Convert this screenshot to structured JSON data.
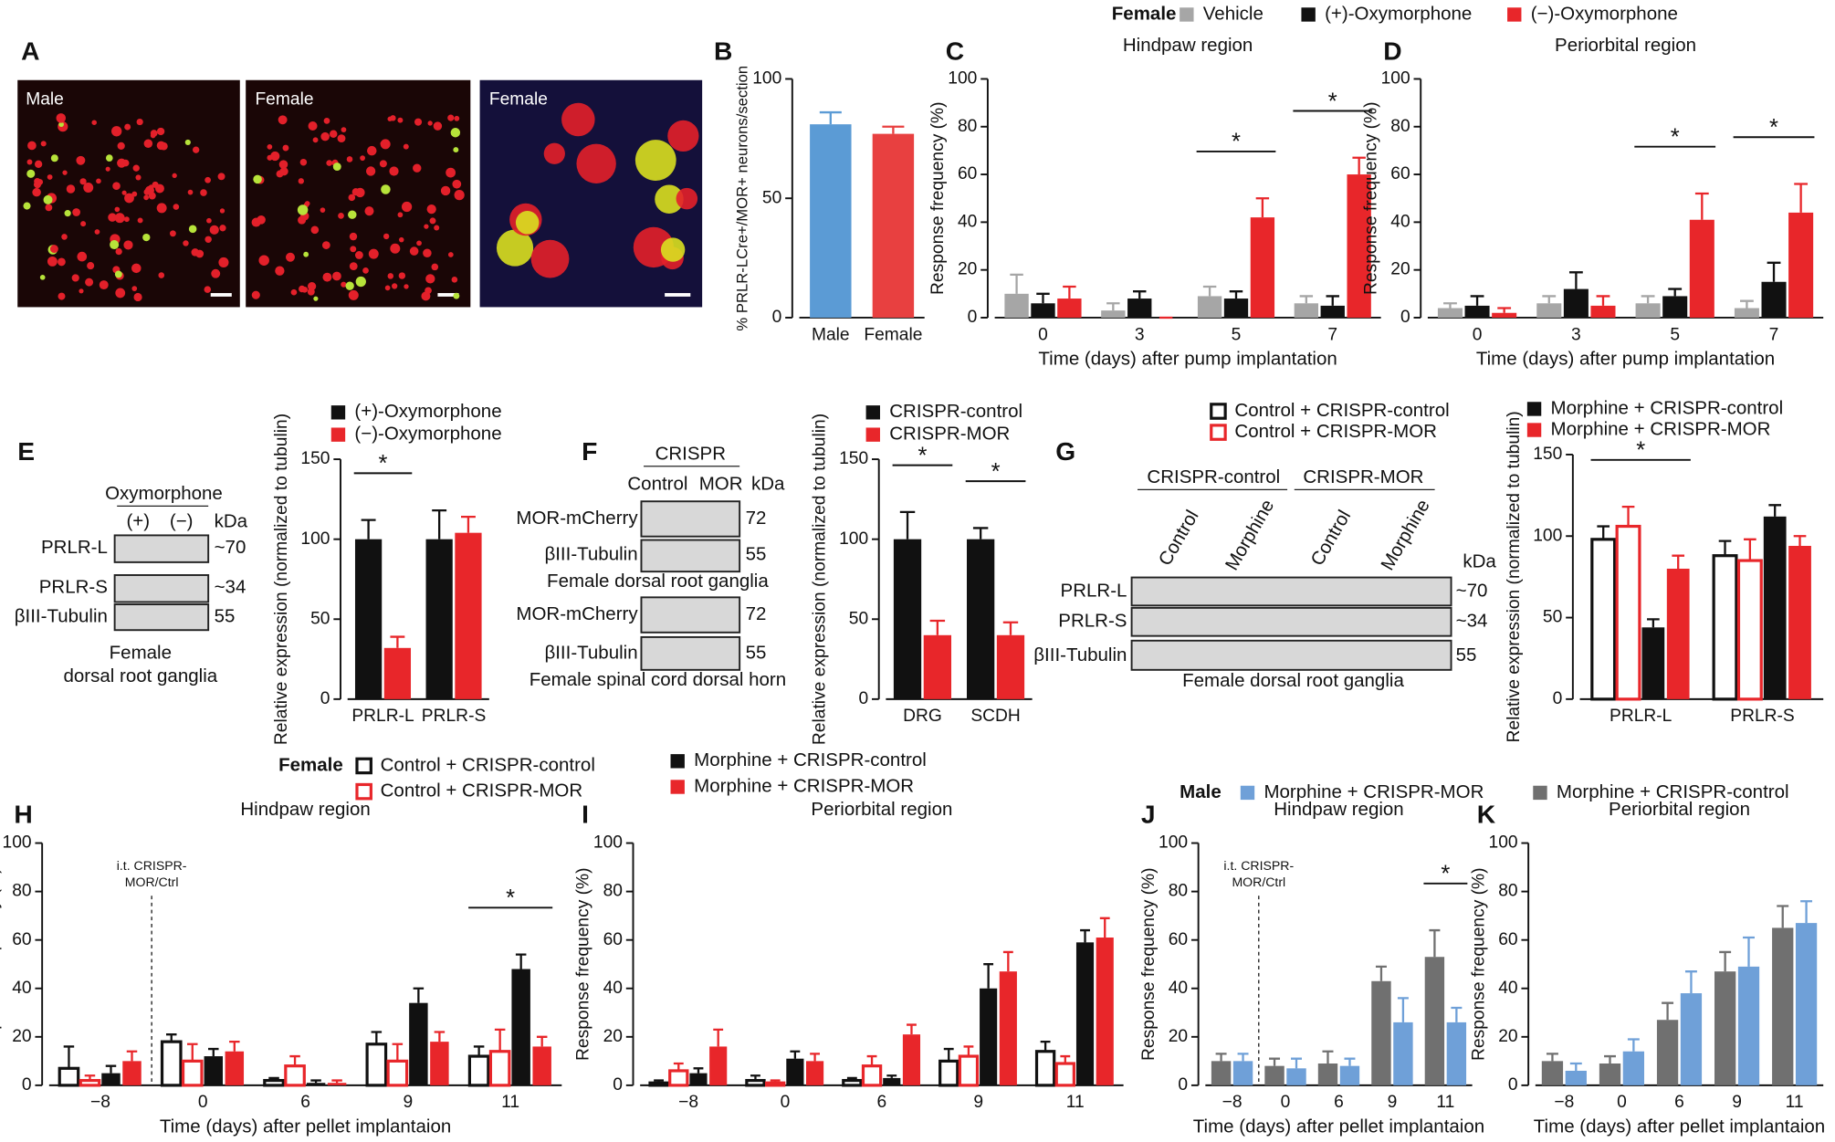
{
  "figure": {
    "panel_letters": [
      "A",
      "B",
      "C",
      "D",
      "E",
      "F",
      "G",
      "H",
      "I",
      "J",
      "K"
    ],
    "images": [
      "Male",
      "Female",
      "Female"
    ],
    "blot_e": {
      "header": "Oxymorphone",
      "lanes": [
        "(+)",
        "(−)"
      ],
      "unit": "kDa",
      "rows": [
        "PRLR-L",
        "PRLR-S",
        "βIII-Tubulin"
      ],
      "sizes": [
        "~70",
        "~34",
        "55"
      ],
      "caption": [
        "Female",
        "dorsal root ganglia"
      ]
    },
    "blot_f": {
      "header": "CRISPR",
      "lanes": [
        "Control",
        "MOR"
      ],
      "unit": "kDa",
      "rows": [
        "MOR-mCherry",
        "βIII-Tubulin",
        "MOR-mCherry",
        "βIII-Tubulin"
      ],
      "sizes": [
        "72",
        "55",
        "72",
        "55"
      ],
      "caption": [
        "Female dorsal root ganglia",
        "Female spinal cord dorsal horn"
      ]
    },
    "blot_g": {
      "groups": [
        "CRISPR-control",
        "CRISPR-MOR"
      ],
      "lanes": [
        "Control",
        "Morphine",
        "Control",
        "Morphine"
      ],
      "unit": "kDa",
      "rows": [
        "PRLR-L",
        "PRLR-S",
        "βIII-Tubulin"
      ],
      "sizes": [
        "~70",
        "~34",
        "55"
      ],
      "caption": "Female dorsal root ganglia"
    }
  },
  "chart_data": [
    {
      "type": "bar",
      "ylabel": "% PRLR-LCre+/MOR+ neurons/section",
      "categories": [
        "Male",
        "Female"
      ],
      "series": [
        {
          "color": "#5b9bd5",
          "values": [
            81,
            null
          ],
          "errors": [
            5,
            null
          ]
        },
        {
          "color": "#e84040",
          "values": [
            null,
            77
          ],
          "errors": [
            null,
            3
          ]
        }
      ],
      "ylim": [
        0,
        100
      ],
      "yticks": [
        0,
        50,
        100
      ]
    },
    {
      "type": "bar",
      "title": "Hindpaw region",
      "ylabel": "Response frequency (%)",
      "xlabel": "Time (days) after pump implantation",
      "legend_title": "Female",
      "categories": [
        "0",
        "3",
        "5",
        "7"
      ],
      "series": [
        {
          "name": "Vehicle",
          "color": "#a6a6a6",
          "values": [
            10,
            3,
            9,
            6
          ],
          "errors": [
            8,
            3,
            4,
            3
          ]
        },
        {
          "name": "(+)-Oxymorphone",
          "color": "#111111",
          "values": [
            6,
            8,
            8,
            5
          ],
          "errors": [
            4,
            3,
            3,
            4
          ]
        },
        {
          "name": "(−)-Oxymorphone",
          "color": "#e8262a",
          "values": [
            8,
            0,
            42,
            60
          ],
          "errors": [
            5,
            0,
            8,
            7
          ]
        }
      ],
      "ylim": [
        0,
        100
      ],
      "yticks": [
        0,
        20,
        40,
        60,
        80,
        100
      ],
      "annotations": [
        {
          "category": 2,
          "text": "*"
        },
        {
          "category": 3,
          "text": "*"
        }
      ]
    },
    {
      "type": "bar",
      "title": "Periorbital region",
      "ylabel": "Response frequency (%)",
      "xlabel": "Time (days) after pump implantation",
      "categories": [
        "0",
        "3",
        "5",
        "7"
      ],
      "series": [
        {
          "color": "#a6a6a6",
          "values": [
            4,
            6,
            6,
            4
          ],
          "errors": [
            2,
            3,
            3,
            3
          ]
        },
        {
          "color": "#111111",
          "values": [
            5,
            12,
            9,
            15
          ],
          "errors": [
            4,
            7,
            3,
            8
          ]
        },
        {
          "color": "#e8262a",
          "values": [
            2,
            5,
            41,
            44
          ],
          "errors": [
            2,
            4,
            11,
            12
          ]
        }
      ],
      "ylim": [
        0,
        100
      ],
      "yticks": [
        0,
        20,
        40,
        60,
        80,
        100
      ],
      "annotations": [
        {
          "category": 2,
          "text": "*"
        },
        {
          "category": 3,
          "text": "*"
        }
      ]
    },
    {
      "type": "bar",
      "ylabel": "Relative expression (normalized to tubulin)",
      "categories": [
        "PRLR-L",
        "PRLR-S"
      ],
      "series": [
        {
          "name": "(+)-Oxymorphone",
          "color": "#111111",
          "values": [
            100,
            100
          ],
          "errors": [
            12,
            18
          ]
        },
        {
          "name": "(−)-Oxymorphone",
          "color": "#e8262a",
          "values": [
            32,
            104
          ],
          "errors": [
            7,
            10
          ]
        }
      ],
      "ylim": [
        0,
        150
      ],
      "yticks": [
        0,
        50,
        100,
        150
      ],
      "annotations": [
        {
          "category": 0,
          "text": "*"
        }
      ]
    },
    {
      "type": "bar",
      "ylabel": "Relative expression (normalized to tubulin)",
      "categories": [
        "DRG",
        "SCDH"
      ],
      "series": [
        {
          "name": "CRISPR-control",
          "color": "#111111",
          "values": [
            100,
            100
          ],
          "errors": [
            17,
            7
          ]
        },
        {
          "name": "CRISPR-MOR",
          "color": "#e8262a",
          "values": [
            40,
            40
          ],
          "errors": [
            9,
            8
          ]
        }
      ],
      "ylim": [
        0,
        150
      ],
      "yticks": [
        0,
        50,
        100,
        150
      ],
      "annotations": [
        {
          "category": 0,
          "text": "*"
        },
        {
          "category": 1,
          "text": "*"
        }
      ]
    },
    {
      "type": "bar",
      "ylabel": "Relative expression (normalized to tubulin)",
      "categories": [
        "PRLR-L",
        "PRLR-S"
      ],
      "series": [
        {
          "name": "Control + CRISPR-control",
          "color": "#111111",
          "open": true,
          "values": [
            98,
            88
          ],
          "errors": [
            8,
            9
          ]
        },
        {
          "name": "Control + CRISPR-MOR",
          "color": "#e8262a",
          "open": true,
          "values": [
            106,
            85
          ],
          "errors": [
            12,
            13
          ]
        },
        {
          "name": "Morphine + CRISPR-control",
          "color": "#111111",
          "values": [
            44,
            112
          ],
          "errors": [
            5,
            7
          ]
        },
        {
          "name": "Morphine + CRISPR-MOR",
          "color": "#e8262a",
          "values": [
            80,
            94
          ],
          "errors": [
            8,
            6
          ]
        }
      ],
      "ylim": [
        0,
        150
      ],
      "yticks": [
        0,
        50,
        100,
        150
      ],
      "annotations": [
        {
          "category": 0,
          "text": "*"
        }
      ]
    },
    {
      "type": "bar",
      "title": "Hindpaw region",
      "ylabel": "Response frequency (%)",
      "xlabel": "Time (days) after pellet implantaion",
      "legend_title": "Female",
      "categories": [
        "−8",
        "0",
        "6",
        "9",
        "11"
      ],
      "vline_label": [
        "i.t. CRISPR-",
        "MOR/Ctrl"
      ],
      "series": [
        {
          "name": "Control + CRISPR-control",
          "color": "#111111",
          "open": true,
          "values": [
            7,
            18,
            2,
            17,
            12
          ],
          "errors": [
            9,
            3,
            1,
            5,
            4
          ]
        },
        {
          "name": "Control + CRISPR-MOR",
          "color": "#e8262a",
          "open": true,
          "values": [
            2,
            10,
            8,
            10,
            14
          ],
          "errors": [
            2,
            7,
            4,
            7,
            9
          ]
        },
        {
          "name": "Morphine + CRISPR-control",
          "color": "#111111",
          "values": [
            5,
            12,
            1,
            34,
            48
          ],
          "errors": [
            3,
            3,
            1,
            6,
            6
          ]
        },
        {
          "name": "Morphine + CRISPR-MOR",
          "color": "#e8262a",
          "values": [
            10,
            14,
            1,
            18,
            16
          ],
          "errors": [
            4,
            4,
            1,
            4,
            4
          ]
        }
      ],
      "ylim": [
        0,
        100
      ],
      "yticks": [
        0,
        20,
        40,
        60,
        80,
        100
      ],
      "annotations": [
        {
          "category": 4,
          "text": "*"
        }
      ]
    },
    {
      "type": "bar",
      "title": "Periorbital region",
      "ylabel": "Response frequency (%)",
      "categories": [
        "−8",
        "0",
        "6",
        "9",
        "11"
      ],
      "series": [
        {
          "color": "#111111",
          "open": true,
          "values": [
            1,
            2,
            2,
            10,
            14
          ],
          "errors": [
            1,
            2,
            1,
            5,
            4
          ]
        },
        {
          "color": "#e8262a",
          "open": true,
          "values": [
            6,
            1,
            8,
            12,
            9
          ],
          "errors": [
            3,
            1,
            4,
            4,
            3
          ]
        },
        {
          "color": "#111111",
          "values": [
            5,
            11,
            3,
            40,
            59
          ],
          "errors": [
            2,
            3,
            1,
            10,
            5
          ]
        },
        {
          "color": "#e8262a",
          "values": [
            16,
            10,
            21,
            47,
            61
          ],
          "errors": [
            7,
            3,
            4,
            8,
            8
          ]
        }
      ],
      "ylim": [
        0,
        100
      ],
      "yticks": [
        0,
        20,
        40,
        60,
        80,
        100
      ]
    },
    {
      "type": "bar",
      "title": "Hindpaw region",
      "ylabel": "Response frequency (%)",
      "xlabel": "Time (days) after pellet implantaion",
      "legend_title": "Male",
      "categories": [
        "−8",
        "0",
        "6",
        "9",
        "11"
      ],
      "vline_label": [
        "i.t. CRISPR-",
        "MOR/Ctrl"
      ],
      "series": [
        {
          "name": "Morphine + CRISPR-control",
          "color": "#707070",
          "values": [
            10,
            8,
            9,
            43,
            53
          ],
          "errors": [
            3,
            3,
            5,
            6,
            11
          ]
        },
        {
          "name": "Morphine + CRISPR-MOR",
          "color": "#6fa0d8",
          "values": [
            10,
            7,
            8,
            26,
            26
          ],
          "errors": [
            3,
            4,
            3,
            10,
            6
          ]
        }
      ],
      "ylim": [
        0,
        100
      ],
      "yticks": [
        0,
        20,
        40,
        60,
        80,
        100
      ],
      "annotations": [
        {
          "category": 4,
          "text": "*"
        }
      ]
    },
    {
      "type": "bar",
      "title": "Periorbital region",
      "ylabel": "Response frequency (%)",
      "xlabel": "Time (days) after pellet implantaion",
      "categories": [
        "−8",
        "0",
        "6",
        "9",
        "11"
      ],
      "series": [
        {
          "color": "#707070",
          "values": [
            10,
            9,
            27,
            47,
            65
          ],
          "errors": [
            3,
            3,
            7,
            8,
            9
          ]
        },
        {
          "color": "#6fa0d8",
          "values": [
            6,
            14,
            38,
            49,
            67
          ],
          "errors": [
            3,
            5,
            9,
            12,
            9
          ]
        }
      ],
      "ylim": [
        0,
        100
      ],
      "yticks": [
        0,
        20,
        40,
        60,
        80,
        100
      ]
    }
  ]
}
